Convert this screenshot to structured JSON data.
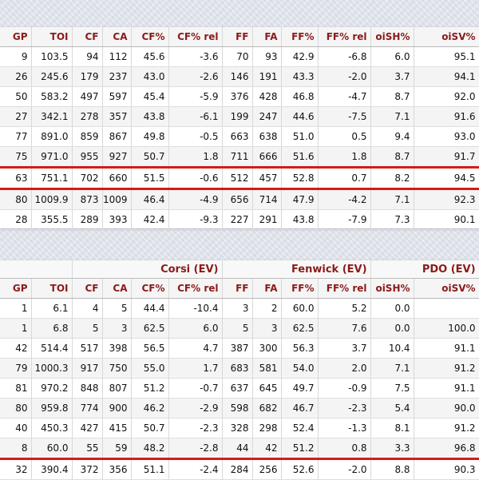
{
  "table1": {
    "columns": [
      "GP",
      "TOI",
      "CF",
      "CA",
      "CF%",
      "CF% rel",
      "FF",
      "FA",
      "FF%",
      "FF% rel",
      "oiSH%",
      "oiSV%"
    ],
    "rows": [
      [
        "9",
        "103.5",
        "94",
        "112",
        "45.6",
        "-3.6",
        "70",
        "93",
        "42.9",
        "-6.8",
        "6.0",
        "95.1"
      ],
      [
        "26",
        "245.6",
        "179",
        "237",
        "43.0",
        "-2.6",
        "146",
        "191",
        "43.3",
        "-2.0",
        "3.7",
        "94.1"
      ],
      [
        "50",
        "583.2",
        "497",
        "597",
        "45.4",
        "-5.9",
        "376",
        "428",
        "46.8",
        "-4.7",
        "8.7",
        "92.0"
      ],
      [
        "27",
        "342.1",
        "278",
        "357",
        "43.8",
        "-6.1",
        "199",
        "247",
        "44.6",
        "-7.5",
        "7.1",
        "91.6"
      ],
      [
        "77",
        "891.0",
        "859",
        "867",
        "49.8",
        "-0.5",
        "663",
        "638",
        "51.0",
        "0.5",
        "9.4",
        "93.0"
      ],
      [
        "75",
        "971.0",
        "955",
        "927",
        "50.7",
        "1.8",
        "711",
        "666",
        "51.6",
        "1.8",
        "8.7",
        "91.7"
      ],
      [
        "63",
        "751.1",
        "702",
        "660",
        "51.5",
        "-0.6",
        "512",
        "457",
        "52.8",
        "0.7",
        "8.2",
        "94.5"
      ],
      [
        "80",
        "1009.9",
        "873",
        "1009",
        "46.4",
        "-4.9",
        "656",
        "714",
        "47.9",
        "-4.2",
        "7.1",
        "92.3"
      ],
      [
        "28",
        "355.5",
        "289",
        "393",
        "42.4",
        "-9.3",
        "227",
        "291",
        "43.8",
        "-7.9",
        "7.3",
        "90.1"
      ]
    ]
  },
  "table2": {
    "groups": {
      "corsi": "Corsi (EV)",
      "fenwick": "Fenwick (EV)",
      "pdo": "PDO (EV)"
    },
    "columns": [
      "GP",
      "TOI",
      "CF",
      "CA",
      "CF%",
      "CF% rel",
      "FF",
      "FA",
      "FF%",
      "FF% rel",
      "oiSH%",
      "oiSV%"
    ],
    "rows": [
      [
        "1",
        "6.1",
        "4",
        "5",
        "44.4",
        "-10.4",
        "3",
        "2",
        "60.0",
        "5.2",
        "0.0",
        ""
      ],
      [
        "1",
        "6.8",
        "5",
        "3",
        "62.5",
        "6.0",
        "5",
        "3",
        "62.5",
        "7.6",
        "0.0",
        "100.0"
      ],
      [
        "42",
        "514.4",
        "517",
        "398",
        "56.5",
        "4.7",
        "387",
        "300",
        "56.3",
        "3.7",
        "10.4",
        "91.1"
      ],
      [
        "79",
        "1000.3",
        "917",
        "750",
        "55.0",
        "1.7",
        "683",
        "581",
        "54.0",
        "2.0",
        "7.1",
        "91.2"
      ],
      [
        "81",
        "970.2",
        "848",
        "807",
        "51.2",
        "-0.7",
        "637",
        "645",
        "49.7",
        "-0.9",
        "7.5",
        "91.1"
      ],
      [
        "80",
        "959.8",
        "774",
        "900",
        "46.2",
        "-2.9",
        "598",
        "682",
        "46.7",
        "-2.3",
        "5.4",
        "90.0"
      ],
      [
        "40",
        "450.3",
        "427",
        "415",
        "50.7",
        "-2.3",
        "328",
        "298",
        "52.4",
        "-1.3",
        "8.1",
        "91.2"
      ],
      [
        "8",
        "60.0",
        "55",
        "59",
        "48.2",
        "-2.8",
        "44",
        "42",
        "51.2",
        "0.8",
        "3.3",
        "96.8"
      ],
      [
        "32",
        "390.4",
        "372",
        "356",
        "51.1",
        "-2.4",
        "284",
        "256",
        "52.6",
        "-2.0",
        "8.8",
        "90.3"
      ]
    ]
  },
  "colors": {
    "header_text": "#8b1a1a",
    "highlight": "#d21c1c",
    "background": "#dfe3ea"
  }
}
